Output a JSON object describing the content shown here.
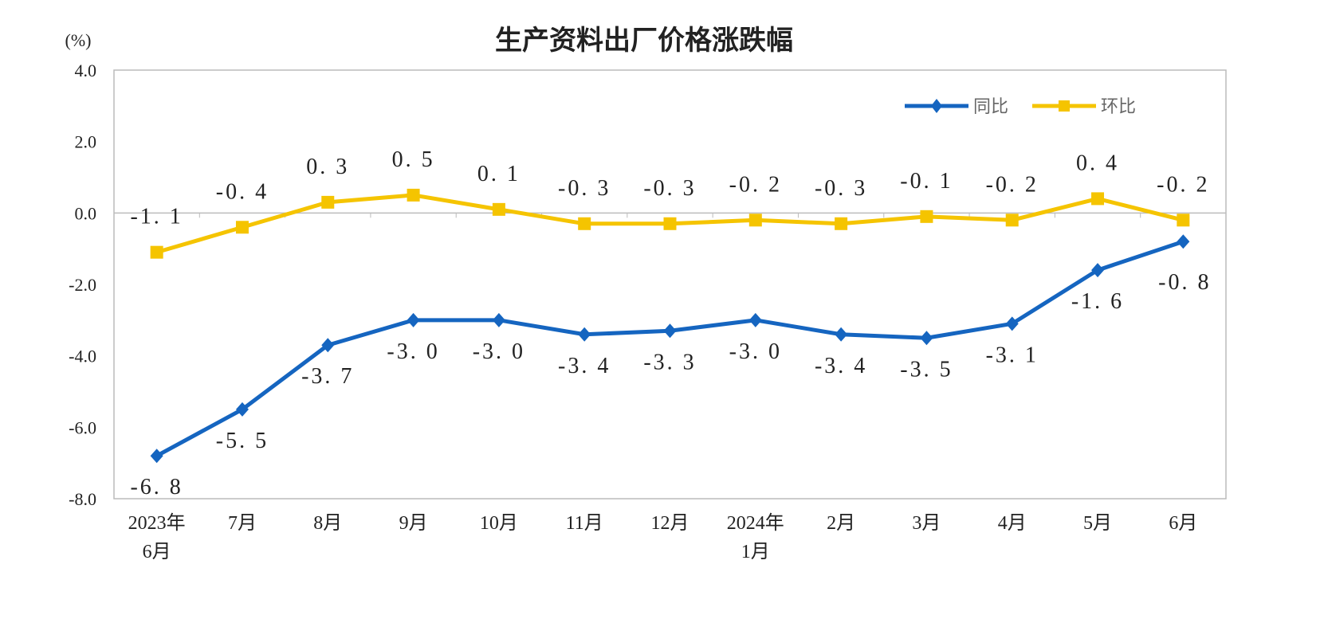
{
  "chart_data": {
    "type": "line",
    "title": "生产资料出厂价格涨跌幅",
    "ylabel": "(%)",
    "ylim": [
      -8.0,
      4.0
    ],
    "yticks": [
      "4.0",
      "2.0",
      "0.0",
      "-2.0",
      "-4.0",
      "-6.0",
      "-8.0"
    ],
    "categories": [
      [
        "2023年",
        "6月"
      ],
      [
        "7月"
      ],
      [
        "8月"
      ],
      [
        "9月"
      ],
      [
        "10月"
      ],
      [
        "11月"
      ],
      [
        "12月"
      ],
      [
        "2024年",
        "1月"
      ],
      [
        "2月"
      ],
      [
        "3月"
      ],
      [
        "4月"
      ],
      [
        "5月"
      ],
      [
        "6月"
      ]
    ],
    "grid": false,
    "legend_position": "top-right",
    "series": [
      {
        "name": "同比",
        "color": "#1565c0",
        "marker": "diamond",
        "values": [
          -6.8,
          -5.5,
          -3.7,
          -3.0,
          -3.0,
          -3.4,
          -3.3,
          -3.0,
          -3.4,
          -3.5,
          -3.1,
          -1.6,
          -0.8
        ],
        "labels": [
          "-6.8",
          "-5.5",
          "-3.7",
          "-3.0",
          "-3.0",
          "-3.4",
          "-3.3",
          "-3.0",
          "-3.4",
          "-3.5",
          "-3.1",
          "-1.6",
          "-0.8"
        ]
      },
      {
        "name": "环比",
        "color": "#f5c400",
        "marker": "square",
        "values": [
          -1.1,
          -0.4,
          0.3,
          0.5,
          0.1,
          -0.3,
          -0.3,
          -0.2,
          -0.3,
          -0.1,
          -0.2,
          0.4,
          -0.2
        ],
        "labels": [
          "-1.1",
          "-0.4",
          "0.3",
          "0.5",
          "0.1",
          "-0.3",
          "-0.3",
          "-0.2",
          "-0.3",
          "-0.1",
          "-0.2",
          "0.4",
          "-0.2"
        ]
      }
    ]
  }
}
